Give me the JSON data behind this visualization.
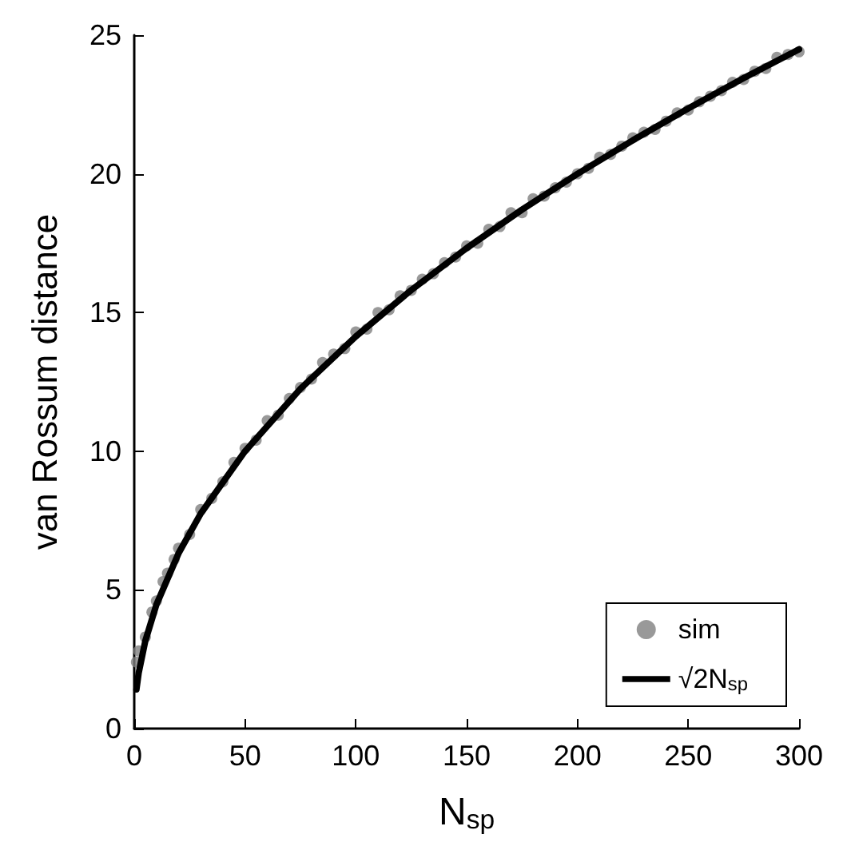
{
  "chart_data": {
    "type": "scatter",
    "xlabel": "N$_{sp}$",
    "ylabel": "van Rossum distance",
    "xlim": [
      0,
      300
    ],
    "xticks": [
      0,
      50,
      100,
      150,
      200,
      250,
      300
    ],
    "ylim": [
      0,
      25
    ],
    "yticks": [
      0,
      5,
      10,
      15,
      20,
      25
    ],
    "grid": false,
    "legend": "bottom right",
    "marker": "circle",
    "line_style": "solid",
    "series": [
      {
        "name": "sim",
        "color": "#808080",
        "x": [
          1,
          2,
          5,
          8,
          10,
          13,
          15,
          18,
          20,
          25,
          30,
          35,
          40,
          45,
          50,
          55,
          60,
          65,
          70,
          75,
          80,
          85,
          90,
          95,
          100,
          105,
          110,
          115,
          120,
          125,
          130,
          135,
          140,
          145,
          150,
          155,
          160,
          165,
          170,
          175,
          180,
          185,
          190,
          195,
          200,
          205,
          210,
          215,
          220,
          225,
          230,
          235,
          240,
          245,
          250,
          255,
          260,
          265,
          270,
          275,
          280,
          285,
          290,
          295,
          300
        ],
        "values": [
          2.4,
          2.8,
          3.3,
          4.2,
          4.6,
          5.3,
          5.6,
          6.1,
          6.5,
          7.0,
          7.9,
          8.3,
          8.9,
          9.6,
          10.1,
          10.4,
          11.1,
          11.3,
          11.9,
          12.3,
          12.6,
          13.2,
          13.5,
          13.7,
          14.3,
          14.4,
          15.0,
          15.1,
          15.6,
          15.8,
          16.2,
          16.4,
          16.8,
          17.0,
          17.4,
          17.5,
          18.0,
          18.1,
          18.6,
          18.6,
          19.1,
          19.2,
          19.5,
          19.7,
          20.0,
          20.2,
          20.6,
          20.7,
          21.0,
          21.3,
          21.5,
          21.6,
          21.9,
          22.2,
          22.3,
          22.6,
          22.8,
          23.0,
          23.3,
          23.4,
          23.7,
          23.8,
          24.2,
          24.3,
          24.4
        ]
      },
      {
        "name": "√2N$_{sp}$",
        "type": "line",
        "marker": "none",
        "color": "#000000",
        "x": [
          1,
          2,
          5,
          10,
          20,
          30,
          50,
          75,
          100,
          125,
          150,
          175,
          200,
          225,
          250,
          275,
          300
        ],
        "values": [
          1.41,
          2.0,
          3.16,
          4.47,
          6.32,
          7.75,
          10.0,
          12.25,
          14.14,
          15.81,
          17.32,
          18.71,
          20.0,
          21.21,
          22.36,
          23.45,
          24.49
        ]
      }
    ]
  }
}
